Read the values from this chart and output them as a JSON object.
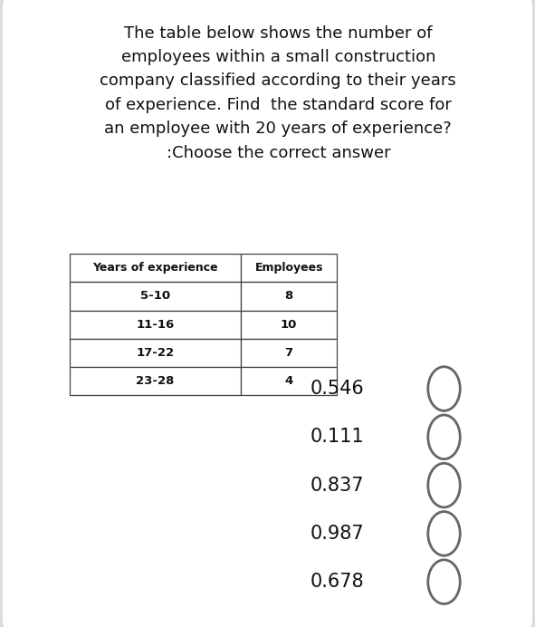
{
  "background_color": "#dcdcdc",
  "card_color": "#ffffff",
  "title_lines": [
    "The table below shows the number of",
    "employees within a small construction",
    "company classified according to their years",
    "of experience. Find  the standard score for",
    "an employee with 20 years of experience?",
    ":Choose the correct answer"
  ],
  "table_headers": [
    "Years of experience",
    "Employees"
  ],
  "table_rows": [
    [
      "5-10",
      "8"
    ],
    [
      "11-16",
      "10"
    ],
    [
      "17-22",
      "7"
    ],
    [
      "23-28",
      "4"
    ]
  ],
  "answer_options": [
    "0.546",
    "0.111",
    "0.837",
    "0.987",
    "0.678"
  ],
  "title_fontsize": 13.0,
  "table_header_fontsize": 9.0,
  "table_row_fontsize": 9.5,
  "answer_fontsize": 15.0
}
